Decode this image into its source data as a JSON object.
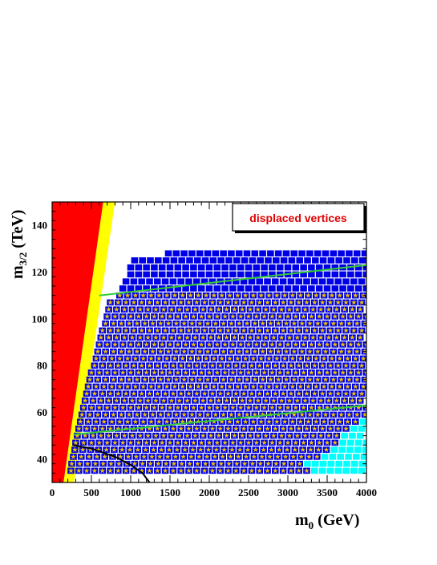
{
  "chart_data": {
    "type": "scatter",
    "xlabel": {
      "main": "m",
      "sub": "0",
      "rest": " (GeV)"
    },
    "ylabel": {
      "main": "m",
      "sub": "3/2",
      "rest": " (TeV)"
    },
    "xlim": [
      0,
      4000
    ],
    "ylim": [
      30,
      150
    ],
    "x_ticks": [
      "0",
      "500",
      "1000",
      "1500",
      "2000",
      "2500",
      "3000",
      "3500",
      "4000"
    ],
    "y_ticks": [
      "40",
      "60",
      "80",
      "100",
      "120",
      "140"
    ],
    "annotation": "displaced vertices",
    "grid": {
      "m0_step": 100,
      "m32_step": 3
    },
    "colors": {
      "excluded_region": "#ff0000",
      "boundary_band": "#ffff00",
      "point": "#0000e6",
      "star": "#e8c000",
      "cyan_point": "#00ffff",
      "green_contour": "#33cc33",
      "black_contour": "#000000"
    },
    "red_region_edge": [
      [
        0,
        150
      ],
      [
        650,
        150
      ],
      [
        145,
        30
      ],
      [
        0,
        30
      ]
    ],
    "yellow_band_edge": [
      [
        650,
        150
      ],
      [
        800,
        150
      ],
      [
        280,
        30
      ],
      [
        145,
        30
      ]
    ],
    "point_region": {
      "rows_m32": [
        35,
        38,
        41,
        44,
        47,
        50,
        53,
        56,
        59,
        62,
        65,
        68,
        71,
        74,
        77,
        80,
        83,
        86,
        89,
        92,
        95,
        98,
        101,
        104,
        107,
        110,
        113,
        116,
        119,
        122,
        125,
        128
      ],
      "row_start_m0": [
        240,
        250,
        270,
        290,
        300,
        320,
        340,
        360,
        380,
        400,
        420,
        440,
        460,
        480,
        500,
        540,
        560,
        580,
        600,
        620,
        640,
        680,
        700,
        720,
        740,
        860,
        900,
        940,
        1000,
        1000,
        1050,
        1480
      ],
      "blue_only_from_m32": 113
    },
    "cyan_region": {
      "rows_m32": [
        35,
        38,
        41,
        44,
        47,
        50,
        53,
        56
      ],
      "row_start_m0": [
        3250,
        3250,
        3400,
        3500,
        3700,
        3700,
        3800,
        3900
      ]
    },
    "green_lines": [
      {
        "name": "",
        "points": [
          [
            600,
            110
          ],
          [
            4000,
            123
          ]
        ]
      },
      {
        "name": "",
        "points": [
          [
            270,
            50.5
          ],
          [
            4000,
            63
          ]
        ]
      }
    ],
    "black_curve": {
      "name": "",
      "points": [
        [
          260,
          46
        ],
        [
          500,
          44.5
        ],
        [
          800,
          41
        ],
        [
          1000,
          37.5
        ],
        [
          1150,
          34
        ],
        [
          1240,
          30
        ]
      ]
    }
  }
}
